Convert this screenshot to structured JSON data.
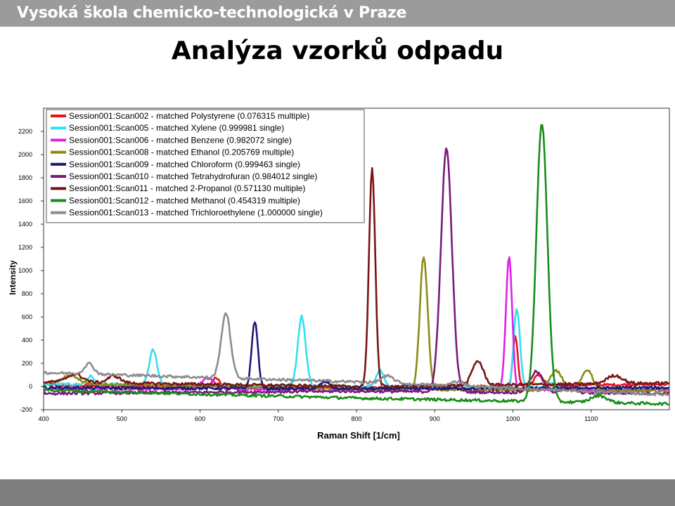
{
  "header": {
    "institution": "Vysoká škola chemicko-technologická v Praze"
  },
  "page": {
    "title": "Analýza vzorků odpadu"
  },
  "chart_data": {
    "type": "line",
    "xlabel": "Raman Shift [1/cm]",
    "ylabel": "Intensity",
    "xlim": [
      400,
      1200
    ],
    "ylim": [
      -200,
      2400
    ],
    "xticks": [
      400,
      500,
      600,
      700,
      800,
      900,
      1000,
      1100
    ],
    "yticks": [
      -200,
      0,
      200,
      400,
      600,
      800,
      1000,
      1200,
      1400,
      1600,
      1800,
      2000,
      2200
    ],
    "grid": false,
    "legend_position": "top-left",
    "series": [
      {
        "name": "Session001:Scan002 - matched Polystyrene (0.076315 multiple)",
        "color": "#e8141c",
        "baseline": [
          [
            400,
            10
          ],
          [
            800,
            -10
          ],
          [
            1200,
            20
          ]
        ],
        "peaks": [
          [
            620,
            70,
            5
          ],
          [
            1003,
            440,
            3
          ],
          [
            1033,
            90,
            6
          ]
        ]
      },
      {
        "name": "Session001:Scan005 - matched Xylene (0.999981 single)",
        "color": "#33e0f0",
        "baseline": [
          [
            400,
            20
          ],
          [
            800,
            0
          ],
          [
            1200,
            -20
          ]
        ],
        "peaks": [
          [
            460,
            70,
            5
          ],
          [
            540,
            300,
            5
          ],
          [
            730,
            600,
            5
          ],
          [
            830,
            140,
            5
          ],
          [
            1005,
            680,
            4
          ],
          [
            1050,
            40,
            6
          ]
        ]
      },
      {
        "name": "Session001:Scan006 - matched Benzene (0.982072 single)",
        "color": "#e020e8",
        "baseline": [
          [
            400,
            -20
          ],
          [
            800,
            -20
          ],
          [
            1200,
            -30
          ]
        ],
        "peaks": [
          [
            610,
            90,
            8
          ],
          [
            995,
            1140,
            4
          ]
        ]
      },
      {
        "name": "Session001:Scan008 - matched Ethanol (0.205769 multiple)",
        "color": "#8c8c14",
        "baseline": [
          [
            400,
            30
          ],
          [
            800,
            -20
          ],
          [
            1200,
            -40
          ]
        ],
        "peaks": [
          [
            435,
            70,
            10
          ],
          [
            886,
            1150,
            5
          ],
          [
            1055,
            170,
            8
          ],
          [
            1095,
            180,
            7
          ]
        ]
      },
      {
        "name": "Session001:Scan009 - matched Chloroform (0.999463 single)",
        "color": "#1a1a78",
        "baseline": [
          [
            400,
            -10
          ],
          [
            800,
            -20
          ],
          [
            1200,
            -10
          ]
        ],
        "peaks": [
          [
            670,
            580,
            4
          ],
          [
            760,
            60,
            6
          ]
        ]
      },
      {
        "name": "Session001:Scan010 - matched Tetrahydrofuran (0.984012 single)",
        "color": "#7a1a7a",
        "baseline": [
          [
            400,
            -60
          ],
          [
            800,
            -40
          ],
          [
            1200,
            -60
          ]
        ],
        "peaks": [
          [
            915,
            2100,
            7
          ],
          [
            1030,
            180,
            8
          ],
          [
            1070,
            60,
            8
          ]
        ]
      },
      {
        "name": "Session001:Scan011 - matched 2-Propanol (0.571130 multiple)",
        "color": "#7a1414",
        "baseline": [
          [
            400,
            40
          ],
          [
            800,
            0
          ],
          [
            1200,
            30
          ]
        ],
        "peaks": [
          [
            440,
            70,
            10
          ],
          [
            490,
            60,
            8
          ],
          [
            820,
            1880,
            4
          ],
          [
            955,
            210,
            7
          ],
          [
            1130,
            70,
            10
          ]
        ]
      },
      {
        "name": "Session001:Scan012 - matched Methanol (0.454319 multiple)",
        "color": "#1a8c1a",
        "baseline": [
          [
            400,
            -30
          ],
          [
            800,
            -100
          ],
          [
            1200,
            -150
          ]
        ],
        "peaks": [
          [
            1037,
            2400,
            7
          ],
          [
            1110,
            60,
            10
          ]
        ]
      },
      {
        "name": "Session001:Scan013 - matched Trichloroethylene (1.000000 single)",
        "color": "#8c8c8c",
        "baseline": [
          [
            400,
            120
          ],
          [
            800,
            40
          ],
          [
            1200,
            -70
          ]
        ],
        "peaks": [
          [
            458,
            90,
            6
          ],
          [
            633,
            560,
            6
          ],
          [
            840,
            60,
            8
          ],
          [
            930,
            40,
            8
          ]
        ]
      }
    ]
  }
}
